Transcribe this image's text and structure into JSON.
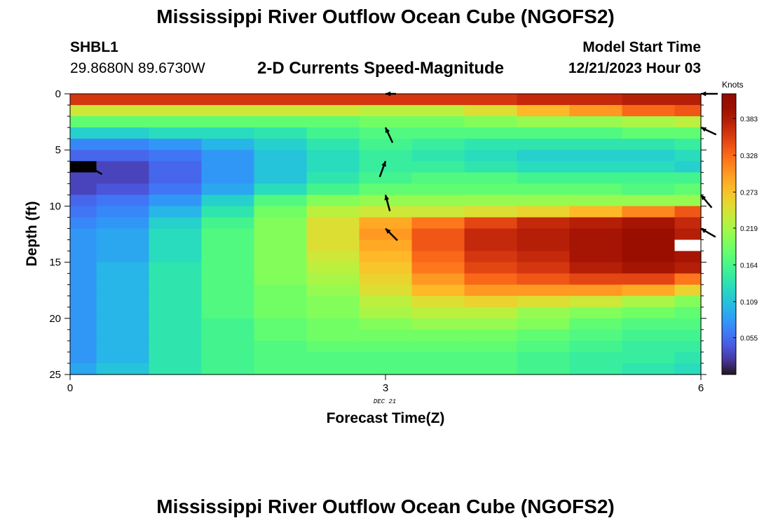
{
  "page": {
    "title_top": "Mississippi River Outflow Ocean Cube (NGOFS2)",
    "title_bottom": "Mississippi River Outflow Ocean Cube (NGOFS2)",
    "station_id": "SHBL1",
    "station_coords": "29.8680N  89.6730W",
    "plot_title": "2-D Currents Speed-Magnitude",
    "model_start_label": "Model Start Time",
    "model_start_value": "12/21/2023 Hour 03"
  },
  "chart_data": {
    "type": "heatmap",
    "xlabel": "Forecast Time(Z)",
    "ylabel": "Depth (ft)",
    "x_ticks": [
      "0",
      "3",
      "6"
    ],
    "x_tick_values": [
      0,
      3,
      6
    ],
    "x_date_label": "DEC 21",
    "xlim": [
      0,
      6
    ],
    "y_ticks": [
      "0",
      "5",
      "10",
      "15",
      "20",
      "25"
    ],
    "y_tick_values": [
      0,
      5,
      10,
      15,
      20,
      25
    ],
    "ylim": [
      0,
      25
    ],
    "y_reversed": true,
    "colorbar": {
      "unit": "Knots",
      "ticks": [
        "0.383",
        "0.328",
        "0.273",
        "0.219",
        "0.164",
        "0.109",
        "0.055"
      ],
      "tick_values": [
        0.383,
        0.328,
        0.273,
        0.219,
        0.164,
        0.109,
        0.055
      ],
      "range": [
        0.0,
        0.42
      ],
      "colormap": "turbo"
    },
    "time_columns": [
      0.0,
      0.5,
      1.0,
      1.5,
      2.0,
      2.5,
      3.0,
      3.5,
      4.0,
      4.5,
      5.0,
      5.5,
      6.0
    ],
    "depth_rows_ft": [
      0.5,
      1.5,
      2.5,
      3.5,
      4.5,
      5.5,
      6.5,
      7.5,
      8.5,
      9.5,
      10.5,
      11.5,
      12.5,
      13.5,
      14.5,
      15.5,
      16.5,
      17.5,
      18.5,
      19.5,
      20.5,
      21.5,
      22.5,
      23.5,
      24.5
    ],
    "speed_knots": [
      [
        0.36,
        0.36,
        0.36,
        0.36,
        0.36,
        0.36,
        0.36,
        0.36,
        0.36,
        0.37,
        0.37,
        0.38,
        0.38
      ],
      [
        0.24,
        0.24,
        0.24,
        0.24,
        0.24,
        0.24,
        0.23,
        0.23,
        0.25,
        0.28,
        0.3,
        0.33,
        0.34
      ],
      [
        0.18,
        0.18,
        0.18,
        0.18,
        0.18,
        0.18,
        0.19,
        0.19,
        0.2,
        0.21,
        0.21,
        0.22,
        0.23
      ],
      [
        0.12,
        0.12,
        0.13,
        0.13,
        0.14,
        0.16,
        0.17,
        0.17,
        0.17,
        0.17,
        0.17,
        0.18,
        0.18
      ],
      [
        0.07,
        0.07,
        0.08,
        0.1,
        0.12,
        0.14,
        0.16,
        0.15,
        0.14,
        0.14,
        0.14,
        0.14,
        0.15
      ],
      [
        0.05,
        0.05,
        0.06,
        0.08,
        0.11,
        0.13,
        0.15,
        0.14,
        0.13,
        0.12,
        0.12,
        0.12,
        0.13
      ],
      [
        0.0,
        0.03,
        0.05,
        0.08,
        0.11,
        0.13,
        0.15,
        0.15,
        0.14,
        0.13,
        0.13,
        0.13,
        0.12
      ],
      [
        0.03,
        0.03,
        0.05,
        0.08,
        0.11,
        0.14,
        0.16,
        0.17,
        0.17,
        0.16,
        0.16,
        0.16,
        0.16
      ],
      [
        0.03,
        0.04,
        0.06,
        0.09,
        0.13,
        0.16,
        0.18,
        0.18,
        0.18,
        0.18,
        0.18,
        0.17,
        0.18
      ],
      [
        0.05,
        0.06,
        0.08,
        0.12,
        0.17,
        0.2,
        0.21,
        0.21,
        0.21,
        0.21,
        0.21,
        0.21,
        0.21
      ],
      [
        0.06,
        0.07,
        0.1,
        0.14,
        0.19,
        0.23,
        0.24,
        0.24,
        0.25,
        0.26,
        0.28,
        0.31,
        0.34
      ],
      [
        0.07,
        0.08,
        0.12,
        0.16,
        0.2,
        0.25,
        0.29,
        0.32,
        0.35,
        0.37,
        0.38,
        0.39,
        0.37
      ],
      [
        0.08,
        0.09,
        0.13,
        0.17,
        0.2,
        0.25,
        0.3,
        0.34,
        0.37,
        0.38,
        0.39,
        0.4,
        0.38
      ],
      [
        0.08,
        0.09,
        0.13,
        0.17,
        0.2,
        0.25,
        0.29,
        0.34,
        0.37,
        0.38,
        0.39,
        0.4,
        0.0
      ],
      [
        0.08,
        0.09,
        0.13,
        0.17,
        0.2,
        0.24,
        0.28,
        0.33,
        0.36,
        0.37,
        0.39,
        0.4,
        0.39
      ],
      [
        0.08,
        0.1,
        0.14,
        0.17,
        0.2,
        0.23,
        0.27,
        0.32,
        0.35,
        0.36,
        0.38,
        0.39,
        0.38
      ],
      [
        0.08,
        0.1,
        0.14,
        0.17,
        0.2,
        0.22,
        0.26,
        0.3,
        0.33,
        0.34,
        0.35,
        0.35,
        0.32
      ],
      [
        0.08,
        0.1,
        0.14,
        0.17,
        0.19,
        0.21,
        0.25,
        0.28,
        0.3,
        0.3,
        0.3,
        0.29,
        0.26
      ],
      [
        0.08,
        0.1,
        0.14,
        0.17,
        0.19,
        0.2,
        0.23,
        0.25,
        0.26,
        0.25,
        0.24,
        0.22,
        0.2
      ],
      [
        0.08,
        0.1,
        0.14,
        0.17,
        0.19,
        0.2,
        0.22,
        0.23,
        0.23,
        0.21,
        0.2,
        0.19,
        0.18
      ],
      [
        0.08,
        0.1,
        0.14,
        0.16,
        0.18,
        0.19,
        0.2,
        0.21,
        0.21,
        0.2,
        0.18,
        0.17,
        0.17
      ],
      [
        0.08,
        0.1,
        0.14,
        0.16,
        0.18,
        0.19,
        0.19,
        0.19,
        0.19,
        0.18,
        0.17,
        0.16,
        0.16
      ],
      [
        0.08,
        0.1,
        0.14,
        0.16,
        0.17,
        0.18,
        0.18,
        0.18,
        0.18,
        0.17,
        0.16,
        0.15,
        0.15
      ],
      [
        0.08,
        0.1,
        0.14,
        0.16,
        0.17,
        0.17,
        0.17,
        0.17,
        0.17,
        0.16,
        0.15,
        0.15,
        0.14
      ],
      [
        0.09,
        0.11,
        0.14,
        0.16,
        0.17,
        0.17,
        0.17,
        0.17,
        0.17,
        0.16,
        0.15,
        0.14,
        0.13
      ]
    ],
    "masked_cells": [
      [
        6,
        0
      ],
      [
        13,
        12
      ]
    ],
    "current_vectors": [
      {
        "t": 0.2,
        "depth_ft": 6.6,
        "dir_deg": 300,
        "len": 0.6
      },
      {
        "t": 3.0,
        "depth_ft": 0.0,
        "dir_deg": 270,
        "len": 0.5
      },
      {
        "t": 3.0,
        "depth_ft": 3.0,
        "dir_deg": 335,
        "len": 0.8
      },
      {
        "t": 3.0,
        "depth_ft": 6.0,
        "dir_deg": 20,
        "len": 0.8
      },
      {
        "t": 3.0,
        "depth_ft": 9.0,
        "dir_deg": 345,
        "len": 0.8
      },
      {
        "t": 3.0,
        "depth_ft": 12.0,
        "dir_deg": 315,
        "len": 0.8
      },
      {
        "t": 6.0,
        "depth_ft": 0.0,
        "dir_deg": 270,
        "len": 0.8
      },
      {
        "t": 6.0,
        "depth_ft": 3.0,
        "dir_deg": 295,
        "len": 0.8
      },
      {
        "t": 6.0,
        "depth_ft": 9.0,
        "dir_deg": 320,
        "len": 0.8
      },
      {
        "t": 6.0,
        "depth_ft": 12.0,
        "dir_deg": 300,
        "len": 0.8
      }
    ]
  }
}
